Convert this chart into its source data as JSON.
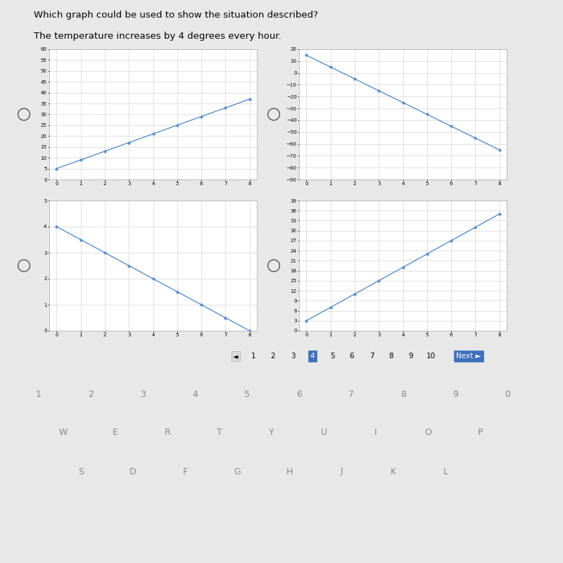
{
  "title": "Which graph could be used to show the situation described?",
  "subtitle": "The temperature increases by 4 degrees every hour.",
  "graph1": {
    "x": [
      0,
      1,
      2,
      3,
      4,
      5,
      6,
      7,
      8
    ],
    "y": [
      5,
      9,
      13,
      17,
      21,
      25,
      29,
      33,
      37
    ],
    "yticks": [
      0,
      5,
      10,
      15,
      20,
      25,
      30,
      35,
      40,
      45,
      50,
      55,
      60
    ],
    "xlim": [
      -0.3,
      8.3
    ],
    "ylim": [
      0,
      60
    ],
    "xticks": [
      0,
      1,
      2,
      3,
      4,
      5,
      6,
      7,
      8
    ]
  },
  "graph2": {
    "x": [
      0,
      1,
      2,
      3,
      4,
      5,
      6,
      7,
      8
    ],
    "y": [
      15,
      5,
      -5,
      -15,
      -25,
      -35,
      -45,
      -55,
      -65
    ],
    "yticks": [
      -90,
      -80,
      -70,
      -60,
      -50,
      -40,
      -30,
      -20,
      -10,
      0,
      10,
      20
    ],
    "xlim": [
      -0.3,
      8.3
    ],
    "ylim": [
      -90,
      20
    ],
    "xticks": [
      0,
      1,
      2,
      3,
      4,
      5,
      6,
      7,
      8
    ]
  },
  "graph3": {
    "x": [
      0,
      1,
      2,
      3,
      4,
      5,
      6,
      7,
      8
    ],
    "y": [
      4.0,
      3.5,
      3.0,
      2.5,
      2.0,
      1.5,
      1.0,
      0.5,
      0.0
    ],
    "yticks": [
      0,
      1,
      2,
      3,
      4,
      5
    ],
    "xlim": [
      -0.3,
      8.3
    ],
    "ylim": [
      0,
      5
    ],
    "xticks": [
      0,
      1,
      2,
      3,
      4,
      5,
      6,
      7,
      8
    ]
  },
  "graph4": {
    "x": [
      0,
      1,
      2,
      3,
      4,
      5,
      6,
      7,
      8
    ],
    "y": [
      3,
      7,
      11,
      15,
      19,
      23,
      27,
      31,
      35
    ],
    "yticks": [
      0,
      3,
      6,
      9,
      12,
      15,
      18,
      21,
      24,
      27,
      30,
      33,
      36,
      39
    ],
    "xlim": [
      -0.3,
      8.3
    ],
    "ylim": [
      0,
      39
    ],
    "xticks": [
      0,
      1,
      2,
      3,
      4,
      5,
      6,
      7,
      8
    ]
  },
  "line_color": "#5b8fc9",
  "marker_color": "#5b8fc9",
  "grid_color": "#cccccc",
  "white_bg": "#ffffff",
  "light_gray": "#e8e8e8",
  "dark_bg": "#2d2d3a",
  "pagination": [
    "1",
    "2",
    "3",
    "4",
    "5",
    "6",
    "7",
    "8",
    "9",
    "10"
  ],
  "current_page": "4",
  "nav_blue": "#3d6fbc",
  "nav_gray": "#bbbbbb",
  "keyboard_color": "#888888",
  "title_fontsize": 9.5,
  "subtitle_fontsize": 9.5,
  "tick_fontsize": 5,
  "pag_fontsize": 8
}
